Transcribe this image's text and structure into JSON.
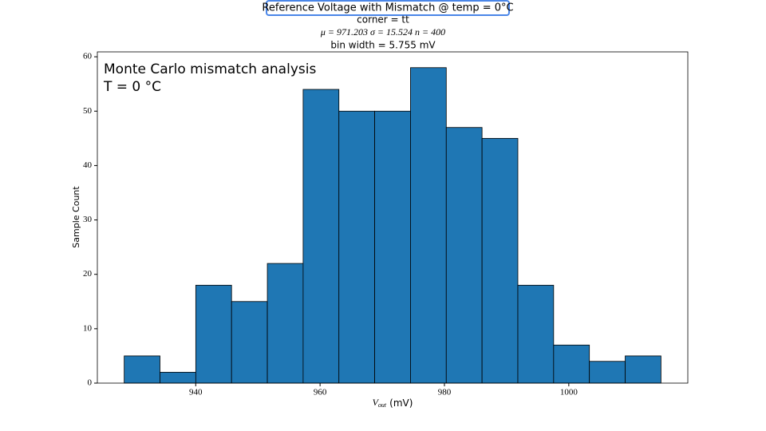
{
  "chart_data": {
    "type": "histogram",
    "title": "Reference Voltage with Mismatch @ temp = 0°C",
    "subtitle": [
      "corner = tt",
      "μ = 971.203 σ = 15.524 n = 400",
      "bin width = 5.755 mV"
    ],
    "annotation": [
      "Monte Carlo mismatch analysis",
      "T = 0 °C"
    ],
    "xlabel": {
      "symbol": "V",
      "subscript": "out",
      "unit": "(mV)"
    },
    "ylabel": "Sample Count",
    "bins": [
      928.5,
      934.255,
      940.01,
      945.765,
      951.52,
      957.275,
      963.03,
      968.785,
      974.54,
      980.295,
      986.05,
      991.805,
      997.56,
      1003.315,
      1009.07,
      1014.825
    ],
    "values": [
      5,
      2,
      18,
      15,
      22,
      54,
      50,
      50,
      58,
      47,
      45,
      18,
      7,
      4,
      5
    ],
    "color": "#1f77b4",
    "edgecolor": "#000000",
    "xlim": [
      924.18,
      1019.14
    ],
    "xticks": [
      940,
      960,
      980,
      1000
    ],
    "ylim": [
      0,
      60.9
    ],
    "yticks": [
      0,
      10,
      20,
      30,
      40,
      50,
      60
    ],
    "grid": false
  }
}
